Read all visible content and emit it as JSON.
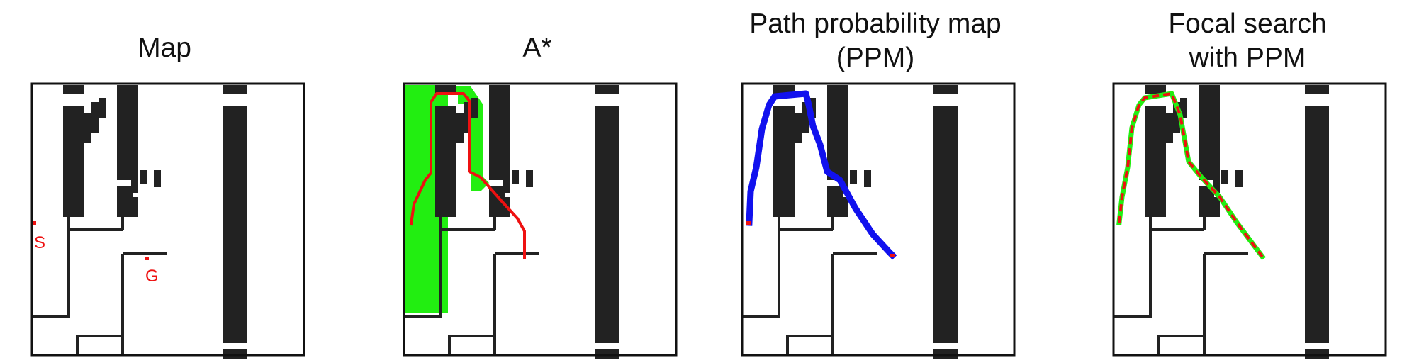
{
  "panels": [
    {
      "title_lines": [
        "Map"
      ]
    },
    {
      "title_lines": [
        "A*"
      ]
    },
    {
      "title_lines": [
        "Path probability map",
        "(PPM)"
      ]
    },
    {
      "title_lines": [
        "Focal search",
        "with PPM"
      ]
    }
  ],
  "start_label": "S",
  "goal_label": "G",
  "colors": {
    "obstacle": "#222222",
    "frame": "#111111",
    "path": "#ee1111",
    "explored": "#22ee11",
    "ppm": "#1111ee"
  }
}
